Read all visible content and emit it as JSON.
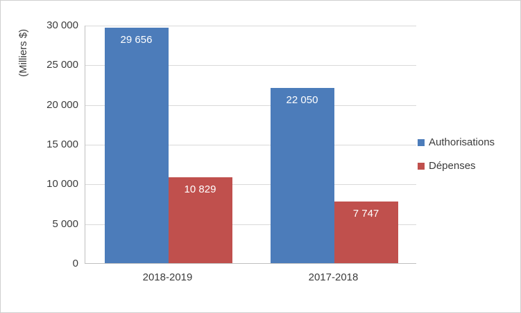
{
  "chart_data": {
    "type": "bar",
    "categories": [
      "2018-2019",
      "2017-2018"
    ],
    "series": [
      {
        "name": "Authorisations",
        "color": "#4c7cba",
        "values": [
          29656,
          22050
        ],
        "labels": [
          "29 656",
          "22 050"
        ]
      },
      {
        "name": "Dépenses",
        "color": "#c0504d",
        "values": [
          10829,
          7747
        ],
        "labels": [
          "10 829",
          "7 747"
        ]
      }
    ],
    "title": "",
    "xlabel": "",
    "ylabel": "(Milliers $)",
    "ylim": [
      0,
      30000
    ],
    "ytick_step": 5000,
    "ytick_labels": [
      "0",
      "5 000",
      "10 000",
      "15 000",
      "20 000",
      "25 000",
      "30 000"
    ],
    "grid": true,
    "legend_position": "right"
  }
}
